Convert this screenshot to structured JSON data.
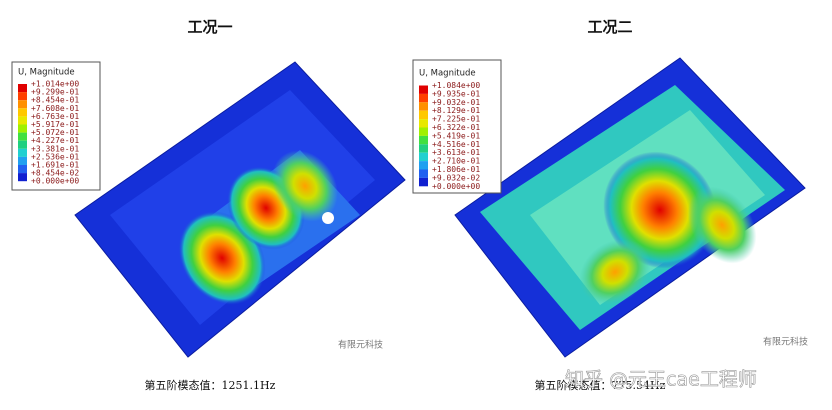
{
  "panels": [
    {
      "title": "工况一",
      "legend": {
        "title": "U, Magnitude",
        "labels": [
          "+1.014e+00",
          "+9.299e-01",
          "+8.454e-01",
          "+7.608e-01",
          "+6.763e-01",
          "+5.917e-01",
          "+5.072e-01",
          "+4.227e-01",
          "+3.381e-01",
          "+2.536e-01",
          "+1.691e-01",
          "+8.454e-02",
          "+0.000e+00"
        ]
      },
      "caption": "第五阶模态值：1251.1Hz",
      "watermark": "有限元科技"
    },
    {
      "title": "工况二",
      "legend": {
        "title": "U, Magnitude",
        "labels": [
          "+1.084e+00",
          "+9.935e-01",
          "+9.032e-01",
          "+8.129e-01",
          "+7.225e-01",
          "+6.322e-01",
          "+5.419e-01",
          "+4.516e-01",
          "+3.613e-01",
          "+2.710e-01",
          "+1.806e-01",
          "+9.032e-02",
          "+0.000e+00"
        ]
      },
      "caption": "第五阶模态值：775.54Hz",
      "watermark": "有限元科技"
    }
  ],
  "site_watermark": "知乎 @元王cae工程师"
}
